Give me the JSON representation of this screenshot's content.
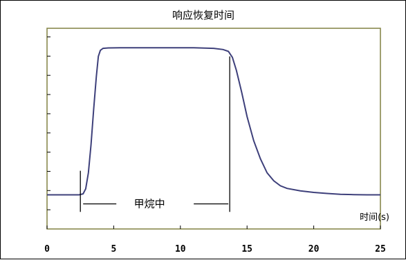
{
  "chart_data": {
    "type": "line",
    "title": "响应恢复时间",
    "xlabel": "时间(s)",
    "ylabel": "",
    "xlim": [
      0,
      25
    ],
    "ylim": [
      0,
      10
    ],
    "x_ticks": [
      0,
      5,
      10,
      15,
      20,
      25
    ],
    "x_tick_labels": [
      "0",
      "5",
      "10",
      "15",
      "20",
      "25"
    ],
    "y_ticks_count": 10,
    "grid": false,
    "series": [
      {
        "color": "#3d3f7a",
        "points": [
          [
            0,
            1.7
          ],
          [
            2.4,
            1.7
          ],
          [
            2.7,
            1.75
          ],
          [
            2.9,
            2.0
          ],
          [
            3.1,
            2.8
          ],
          [
            3.3,
            4.2
          ],
          [
            3.5,
            6.0
          ],
          [
            3.7,
            7.6
          ],
          [
            3.85,
            8.6
          ],
          [
            4.0,
            8.9
          ],
          [
            4.2,
            9.0
          ],
          [
            4.6,
            9.02
          ],
          [
            5.5,
            9.03
          ],
          [
            8,
            9.03
          ],
          [
            11,
            9.03
          ],
          [
            12.5,
            9.0
          ],
          [
            13.2,
            8.94
          ],
          [
            13.6,
            8.85
          ],
          [
            13.9,
            8.55
          ],
          [
            14.2,
            7.9
          ],
          [
            14.6,
            6.8
          ],
          [
            15.0,
            5.6
          ],
          [
            15.5,
            4.4
          ],
          [
            16.0,
            3.5
          ],
          [
            16.5,
            2.8
          ],
          [
            17.0,
            2.4
          ],
          [
            17.5,
            2.15
          ],
          [
            18.0,
            2.02
          ],
          [
            19.0,
            1.9
          ],
          [
            20.0,
            1.82
          ],
          [
            21.0,
            1.77
          ],
          [
            22.0,
            1.73
          ],
          [
            23.0,
            1.71
          ],
          [
            24.0,
            1.7
          ],
          [
            25.0,
            1.7
          ]
        ]
      }
    ],
    "annotation": {
      "text": "甲烷中",
      "x_start": 2.5,
      "x_end": 13.7,
      "y": 1.25,
      "marker_top_start": 2.9,
      "marker_top_end": 8.6,
      "marker_bottom": 0.85
    },
    "colors": {
      "axis_border": "#808040",
      "line": "#3d3f7a",
      "marker": "#000000"
    }
  }
}
